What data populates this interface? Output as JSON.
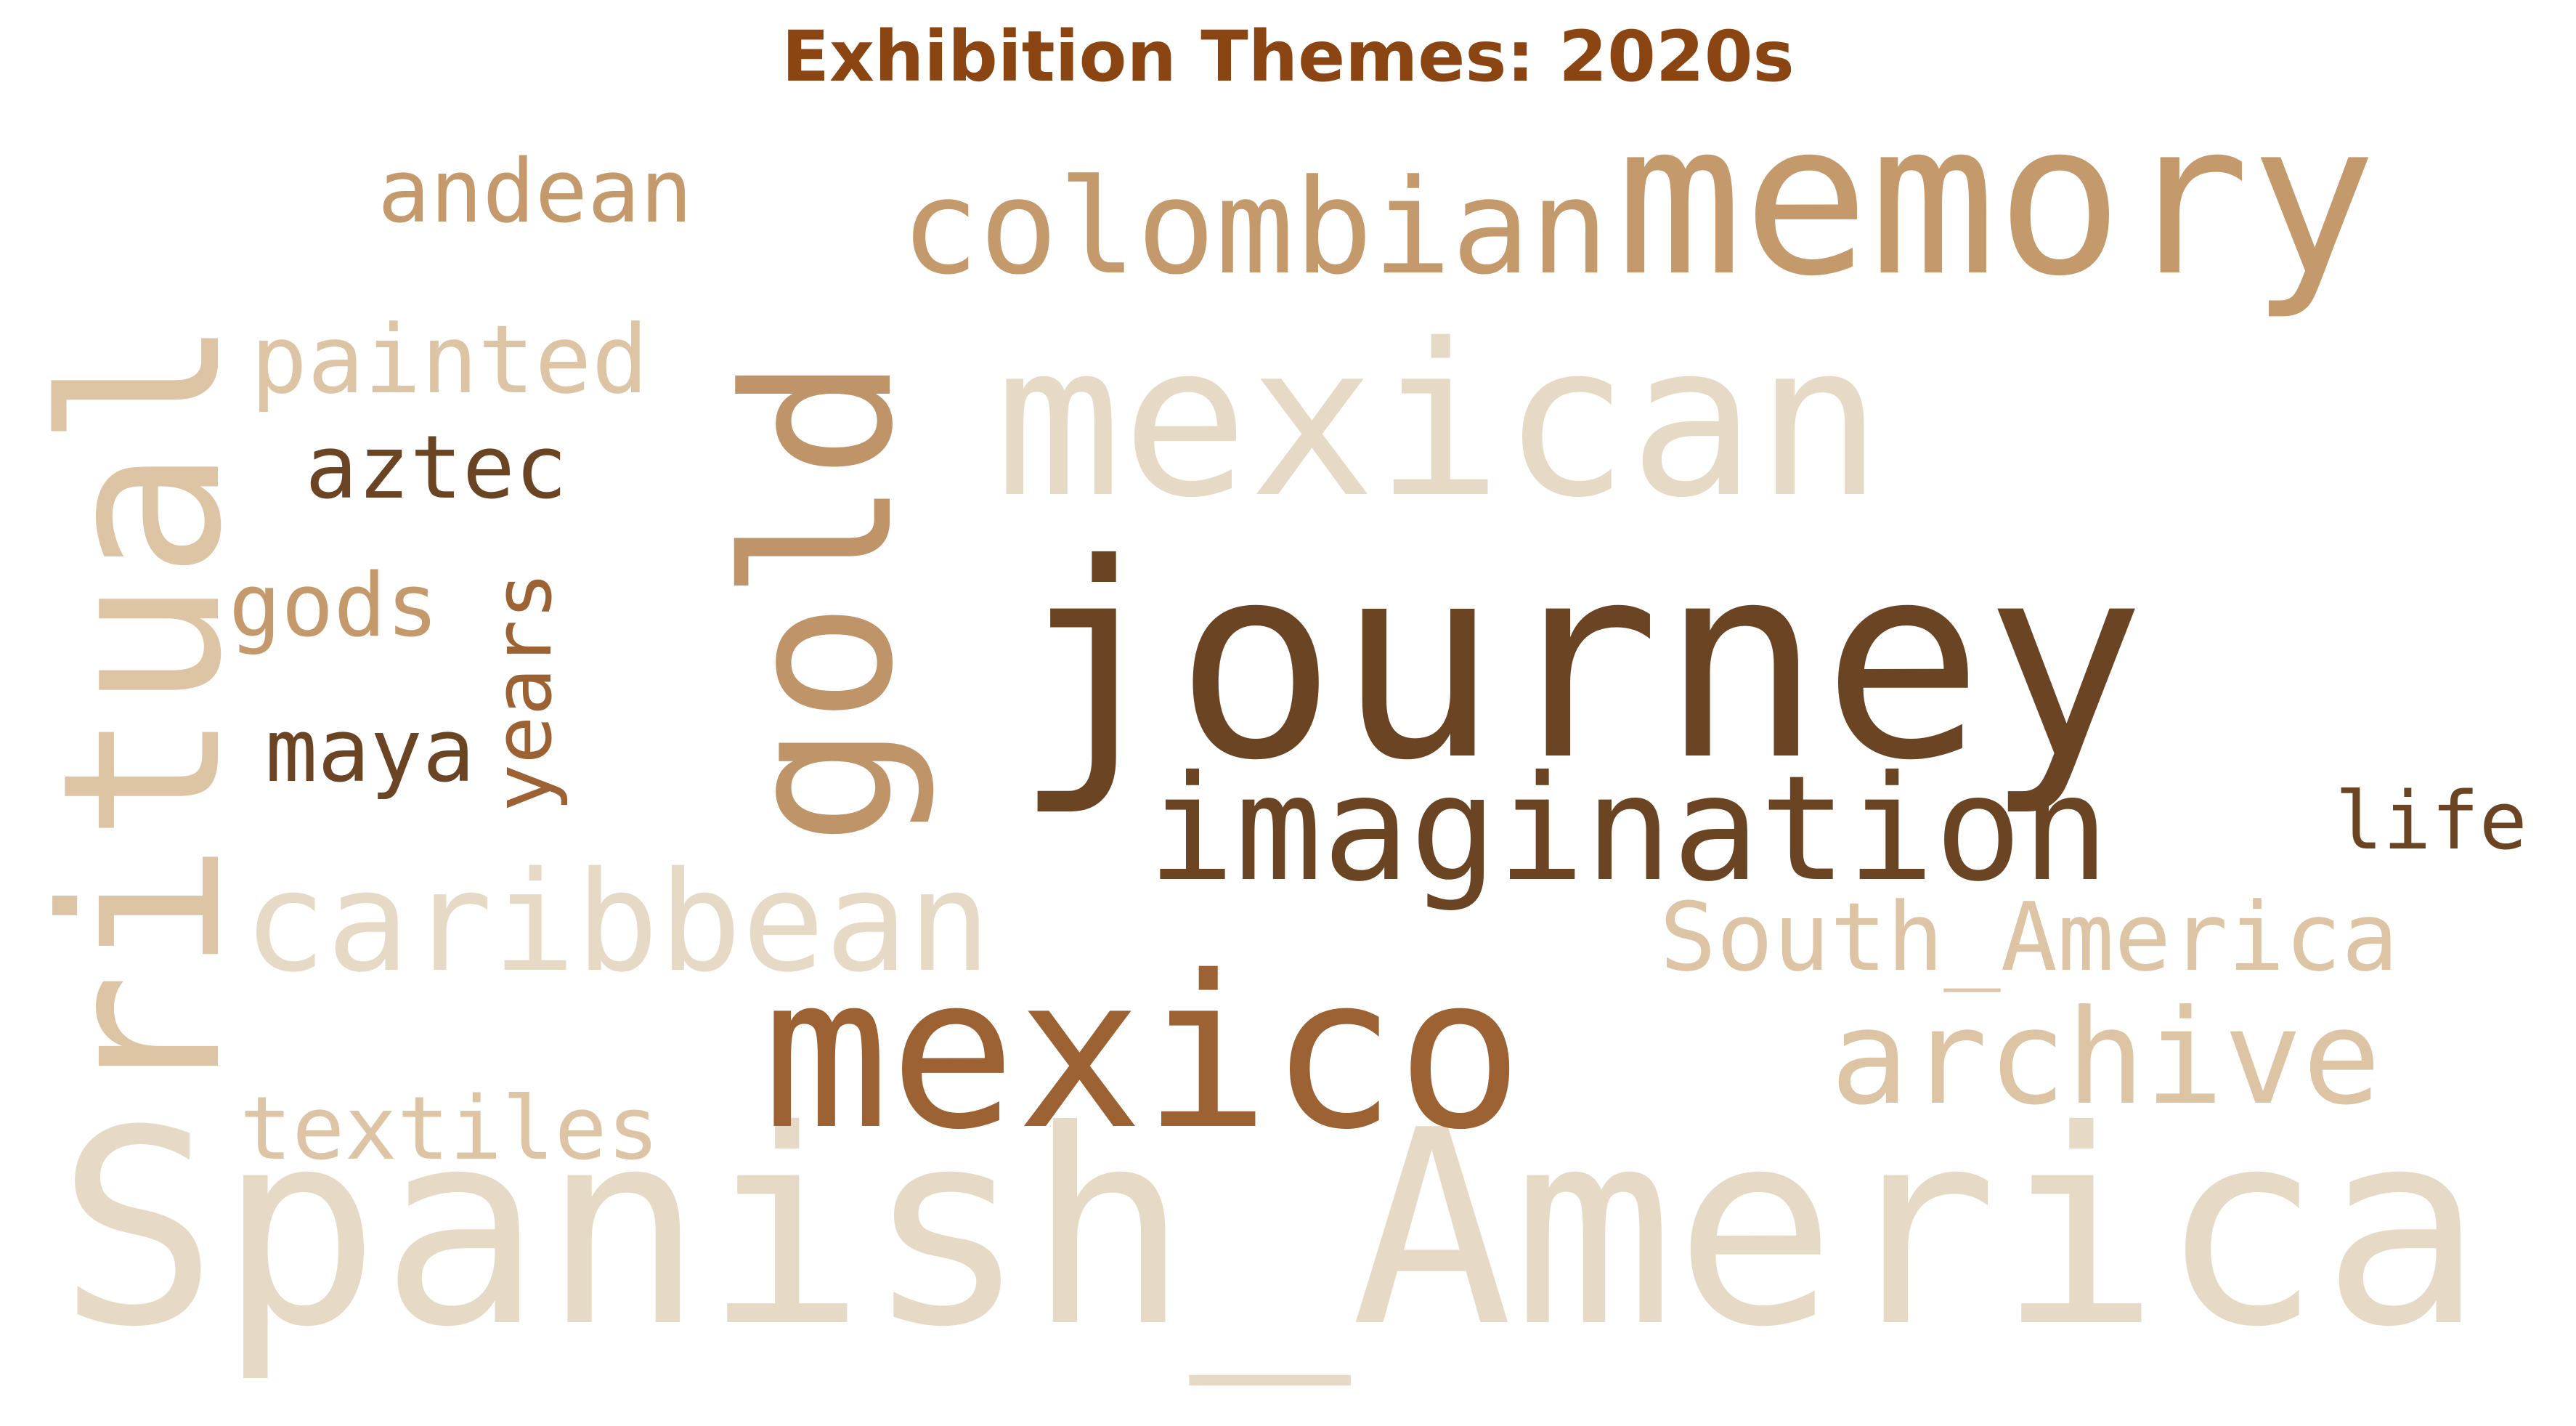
{
  "chart_data": {
    "type": "wordcloud",
    "title": "Exhibition Themes: 2020s",
    "colors": {
      "title": "#8B4513",
      "palette": [
        "#6b4423",
        "#9c6233",
        "#bf9468",
        "#c49a6c",
        "#dcc4a4",
        "#e6dac6"
      ]
    },
    "words": [
      {
        "text": "Spanish_America",
        "color": "#e6dac6"
      },
      {
        "text": "journey",
        "color": "#6b4423"
      },
      {
        "text": "mexico",
        "color": "#9c6233"
      },
      {
        "text": "mexican",
        "color": "#e6dac6"
      },
      {
        "text": "memory",
        "color": "#c49a6c"
      },
      {
        "text": "ritual",
        "color": "#dcc4a4"
      },
      {
        "text": "gold",
        "color": "#bf9468"
      },
      {
        "text": "imagination",
        "color": "#6b4423"
      },
      {
        "text": "colombian",
        "color": "#c49a6c"
      },
      {
        "text": "caribbean",
        "color": "#e6dac6"
      },
      {
        "text": "archive",
        "color": "#dcc4a4"
      },
      {
        "text": "South_America",
        "color": "#dcc4a4"
      },
      {
        "text": "painted",
        "color": "#dcc4a4"
      },
      {
        "text": "andean",
        "color": "#c49a6c"
      },
      {
        "text": "aztec",
        "color": "#6b4423"
      },
      {
        "text": "gods",
        "color": "#c49a6c"
      },
      {
        "text": "maya",
        "color": "#6b4423"
      },
      {
        "text": "years",
        "color": "#9c6233"
      },
      {
        "text": "textiles",
        "color": "#dcc4a4"
      },
      {
        "text": "life",
        "color": "#6b4423"
      }
    ]
  }
}
